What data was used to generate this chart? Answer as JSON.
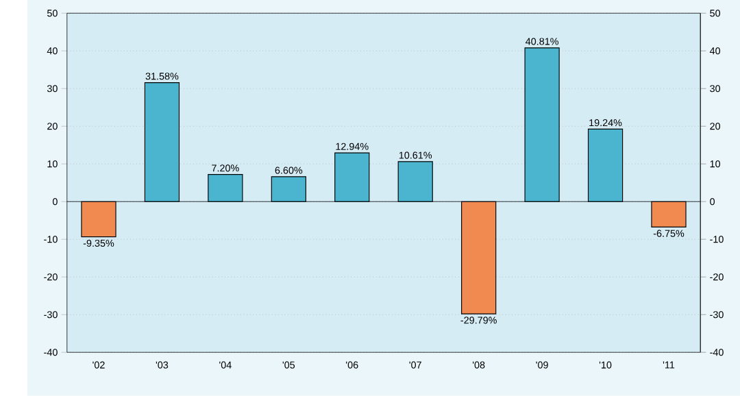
{
  "chart_data": {
    "type": "bar",
    "categories": [
      "'02",
      "'03",
      "'04",
      "'05",
      "'06",
      "'07",
      "'08",
      "'09",
      "'10",
      "'11"
    ],
    "values": [
      -9.35,
      31.58,
      7.2,
      6.6,
      12.94,
      10.61,
      -29.79,
      40.81,
      19.24,
      -6.75
    ],
    "colors": [
      "#f08a50",
      "#4bb4cf",
      "#4bb4cf",
      "#4bb4cf",
      "#4bb4cf",
      "#4bb4cf",
      "#f08a50",
      "#4bb4cf",
      "#4bb4cf",
      "#f08a50"
    ],
    "value_labels": [
      "-9.35%",
      "31.58%",
      "7.20%",
      "6.60%",
      "12.94%",
      "10.61%",
      "-29.79%",
      "40.81%",
      "19.24%",
      "-6.75%"
    ],
    "ylim": [
      -40,
      50
    ],
    "yticks": [
      -40,
      -30,
      -20,
      -10,
      0,
      10,
      20,
      30,
      40,
      50
    ],
    "y2lim": [
      -40,
      50
    ],
    "y2ticks": [
      -40,
      -30,
      -20,
      -10,
      0,
      10,
      20,
      30,
      40,
      50
    ],
    "grid": "y"
  }
}
